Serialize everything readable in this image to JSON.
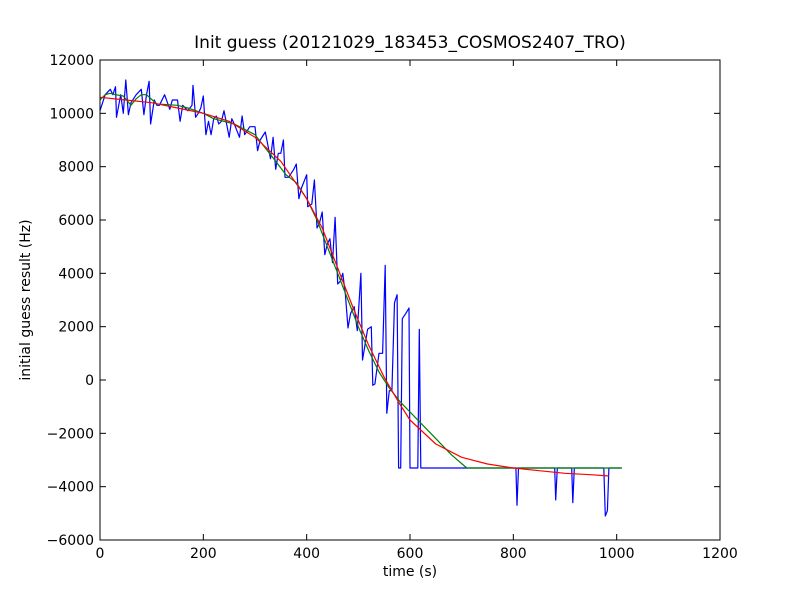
{
  "chart_data": {
    "type": "line",
    "title": "Init guess (20121029_183453_COSMOS2407_TRO)",
    "xlabel": "time (s)",
    "ylabel": "initial guess result (Hz)",
    "xlim": [
      0,
      1200
    ],
    "ylim": [
      -6000,
      12000
    ],
    "x_ticks": [
      0,
      200,
      400,
      600,
      800,
      1000,
      1200
    ],
    "y_ticks": [
      -6000,
      -4000,
      -2000,
      0,
      2000,
      4000,
      6000,
      8000,
      10000,
      12000
    ],
    "grid": false,
    "legend": "none",
    "series": [
      {
        "color": "#0000ff",
        "points": [
          [
            0,
            10100
          ],
          [
            10,
            10700
          ],
          [
            20,
            10900
          ],
          [
            25,
            10700
          ],
          [
            30,
            11000
          ],
          [
            32,
            9850
          ],
          [
            40,
            10700
          ],
          [
            45,
            10000
          ],
          [
            50,
            11250
          ],
          [
            55,
            9950
          ],
          [
            60,
            10400
          ],
          [
            70,
            10700
          ],
          [
            80,
            10900
          ],
          [
            85,
            9950
          ],
          [
            90,
            10700
          ],
          [
            95,
            11200
          ],
          [
            98,
            9600
          ],
          [
            105,
            10500
          ],
          [
            110,
            10300
          ],
          [
            115,
            10300
          ],
          [
            125,
            10700
          ],
          [
            135,
            10150
          ],
          [
            140,
            10500
          ],
          [
            150,
            10500
          ],
          [
            155,
            9700
          ],
          [
            160,
            10300
          ],
          [
            170,
            10100
          ],
          [
            178,
            10300
          ],
          [
            180,
            11050
          ],
          [
            185,
            9850
          ],
          [
            190,
            10000
          ],
          [
            195,
            10200
          ],
          [
            200,
            10650
          ],
          [
            205,
            9200
          ],
          [
            210,
            9700
          ],
          [
            215,
            9200
          ],
          [
            220,
            9800
          ],
          [
            225,
            9900
          ],
          [
            230,
            9600
          ],
          [
            235,
            9700
          ],
          [
            240,
            10100
          ],
          [
            250,
            9100
          ],
          [
            255,
            9800
          ],
          [
            260,
            9600
          ],
          [
            270,
            9100
          ],
          [
            275,
            9900
          ],
          [
            280,
            9200
          ],
          [
            290,
            9500
          ],
          [
            300,
            9500
          ],
          [
            305,
            8600
          ],
          [
            310,
            9000
          ],
          [
            320,
            9300
          ],
          [
            330,
            8300
          ],
          [
            335,
            9100
          ],
          [
            340,
            7900
          ],
          [
            345,
            8500
          ],
          [
            350,
            8500
          ],
          [
            355,
            9000
          ],
          [
            358,
            7600
          ],
          [
            365,
            7600
          ],
          [
            375,
            7900
          ],
          [
            380,
            8100
          ],
          [
            385,
            6800
          ],
          [
            390,
            7200
          ],
          [
            400,
            7700
          ],
          [
            402,
            6500
          ],
          [
            410,
            6600
          ],
          [
            415,
            7500
          ],
          [
            420,
            5700
          ],
          [
            425,
            5900
          ],
          [
            430,
            6300
          ],
          [
            435,
            4700
          ],
          [
            440,
            5100
          ],
          [
            445,
            5300
          ],
          [
            450,
            4400
          ],
          [
            455,
            6100
          ],
          [
            460,
            3600
          ],
          [
            465,
            3700
          ],
          [
            470,
            4000
          ],
          [
            475,
            3200
          ],
          [
            480,
            1950
          ],
          [
            485,
            2500
          ],
          [
            492,
            2750
          ],
          [
            498,
            1850
          ],
          [
            505,
            4000
          ],
          [
            508,
            750
          ],
          [
            512,
            1200
          ],
          [
            518,
            1900
          ],
          [
            525,
            2000
          ],
          [
            528,
            -200
          ],
          [
            532,
            -150
          ],
          [
            540,
            1000
          ],
          [
            547,
            1000
          ],
          [
            552,
            4300
          ],
          [
            555,
            -1250
          ],
          [
            560,
            -400
          ],
          [
            565,
            -400
          ],
          [
            570,
            2900
          ],
          [
            575,
            3200
          ],
          [
            578,
            -3300
          ],
          [
            582,
            -3300
          ],
          [
            585,
            2300
          ],
          [
            592,
            2500
          ],
          [
            598,
            2700
          ],
          [
            600,
            -3300
          ],
          [
            615,
            -3300
          ],
          [
            618,
            1900
          ],
          [
            621,
            -3300
          ],
          [
            700,
            -3300
          ],
          [
            800,
            -3300
          ],
          [
            805,
            -3300
          ],
          [
            807,
            -4700
          ],
          [
            810,
            -3300
          ],
          [
            880,
            -3300
          ],
          [
            882,
            -4500
          ],
          [
            885,
            -3300
          ],
          [
            913,
            -3300
          ],
          [
            915,
            -4600
          ],
          [
            918,
            -3300
          ],
          [
            975,
            -3300
          ],
          [
            978,
            -5100
          ],
          [
            982,
            -4900
          ],
          [
            985,
            -3300
          ],
          [
            1010,
            -3300
          ]
        ]
      },
      {
        "color": "#008000",
        "points": [
          [
            0,
            10500
          ],
          [
            10,
            10700
          ],
          [
            20,
            10750
          ],
          [
            30,
            10700
          ],
          [
            45,
            10650
          ],
          [
            60,
            10300
          ],
          [
            70,
            10550
          ],
          [
            80,
            10700
          ],
          [
            90,
            10700
          ],
          [
            110,
            10350
          ],
          [
            150,
            10300
          ],
          [
            170,
            10200
          ],
          [
            200,
            10000
          ],
          [
            220,
            9800
          ],
          [
            260,
            9600
          ],
          [
            300,
            9200
          ],
          [
            320,
            8700
          ],
          [
            340,
            8200
          ],
          [
            360,
            7700
          ],
          [
            380,
            7400
          ],
          [
            400,
            6800
          ],
          [
            420,
            6000
          ],
          [
            440,
            5000
          ],
          [
            460,
            4000
          ],
          [
            480,
            3000
          ],
          [
            500,
            2000
          ],
          [
            520,
            1100
          ],
          [
            540,
            300
          ],
          [
            560,
            -300
          ],
          [
            580,
            -800
          ],
          [
            600,
            -1200
          ],
          [
            640,
            -2000
          ],
          [
            680,
            -2800
          ],
          [
            710,
            -3300
          ],
          [
            800,
            -3300
          ],
          [
            900,
            -3300
          ],
          [
            1010,
            -3300
          ]
        ]
      },
      {
        "color": "#ff0000",
        "points": [
          [
            0,
            10600
          ],
          [
            50,
            10500
          ],
          [
            100,
            10400
          ],
          [
            150,
            10200
          ],
          [
            200,
            10000
          ],
          [
            250,
            9700
          ],
          [
            300,
            9100
          ],
          [
            350,
            8200
          ],
          [
            400,
            6800
          ],
          [
            430,
            5700
          ],
          [
            460,
            4200
          ],
          [
            490,
            2700
          ],
          [
            520,
            1300
          ],
          [
            550,
            100
          ],
          [
            580,
            -900
          ],
          [
            600,
            -1500
          ],
          [
            650,
            -2400
          ],
          [
            700,
            -2900
          ],
          [
            750,
            -3150
          ],
          [
            800,
            -3300
          ],
          [
            850,
            -3400
          ],
          [
            900,
            -3500
          ],
          [
            950,
            -3550
          ],
          [
            985,
            -3600
          ]
        ]
      }
    ]
  }
}
